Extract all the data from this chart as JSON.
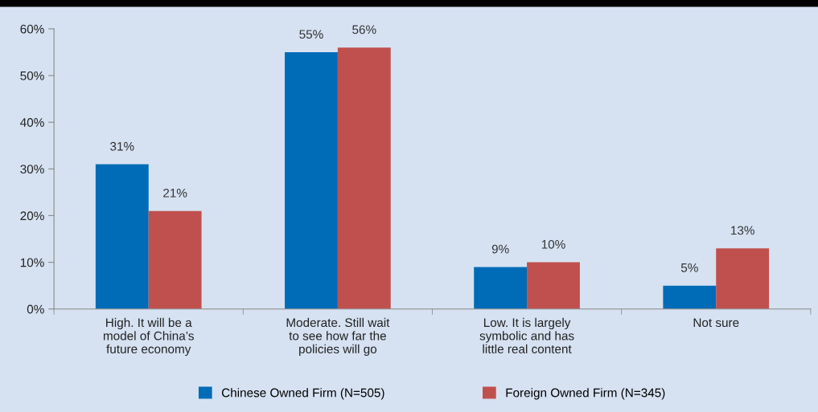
{
  "chart_data": {
    "type": "bar",
    "categories": [
      "High. It will be a\nmodel of China’s\nfuture economy",
      "Moderate. Still wait\nto see how far the\npolicies will go",
      "Low. It is largely\nsymbolic and has\nlittle real content",
      "Not sure"
    ],
    "series": [
      {
        "name": "Chinese Owned Firm (N=505)",
        "color": "#006bb6",
        "values": [
          31,
          55,
          9,
          5
        ],
        "value_labels": [
          "31%",
          "55%",
          "9%",
          "5%"
        ]
      },
      {
        "name": "Foreign Owned Firm (N=345)",
        "color": "#c0504d",
        "values": [
          21,
          56,
          10,
          13
        ],
        "value_labels": [
          "21%",
          "56%",
          "10%",
          "13%"
        ]
      }
    ],
    "ylim": [
      0,
      60
    ],
    "yticks": [
      {
        "value": 0,
        "label": "0%"
      },
      {
        "value": 10,
        "label": "10%"
      },
      {
        "value": 20,
        "label": "20%"
      },
      {
        "value": 30,
        "label": "30%"
      },
      {
        "value": 40,
        "label": "40%"
      },
      {
        "value": 50,
        "label": "50%"
      },
      {
        "value": 60,
        "label": "60%"
      }
    ],
    "grid": false,
    "legend": "bottom"
  }
}
